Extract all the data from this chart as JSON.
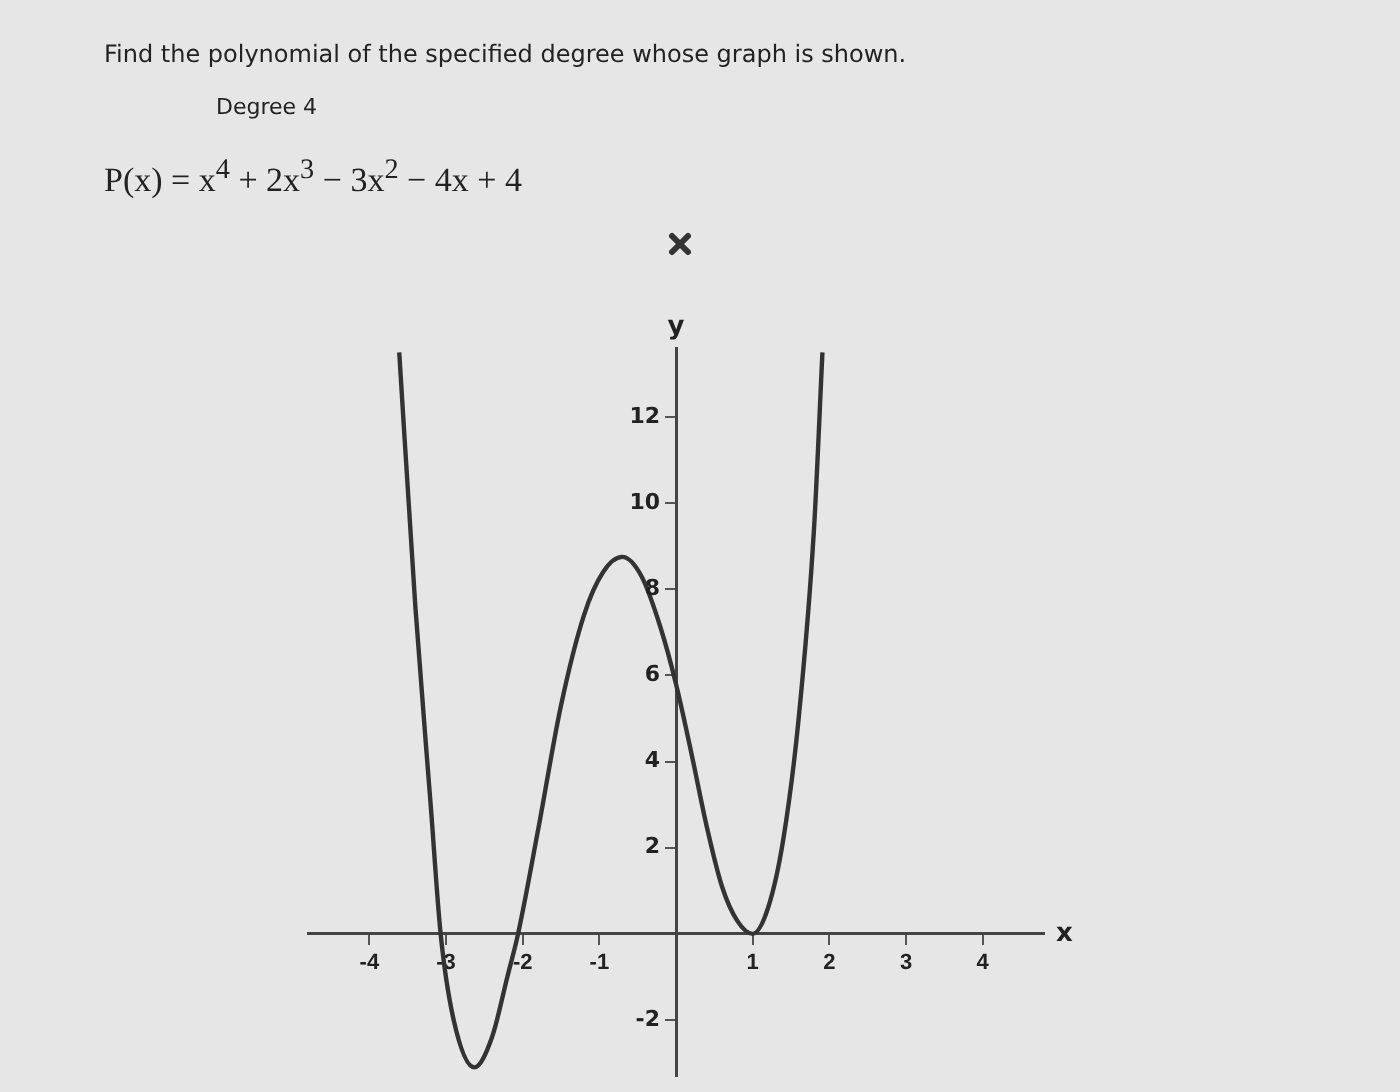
{
  "chart_data": {
    "type": "line",
    "title": "Find the polynomial of the specified degree whose graph is shown.",
    "subtitle": "Degree 4",
    "annotations": [
      "P(x) = x$^{4}$ + 2x$^{3}$ − 3x$^{2}$ − 4x + 4"
    ],
    "xlabel": "x",
    "ylabel": "y",
    "x": [
      -3.61,
      -3.4,
      -3.2,
      -3.07,
      -2.9,
      -2.63,
      -2.4,
      -2.2,
      -2.06,
      -1.8,
      -1.5,
      -1.2,
      -0.95,
      -0.7,
      -0.45,
      -0.2,
      0,
      0.2,
      0.4,
      0.6,
      0.8,
      1,
      1.2,
      1.4,
      1.6,
      1.8,
      1.91
    ],
    "series": [
      {
        "color": "#333333",
        "values": [
          13.5,
          7.6,
          3.0,
          0,
          -2.0,
          -3.1,
          -2.4,
          -1.0,
          0,
          2.4,
          5.3,
          7.4,
          8.4,
          8.75,
          8.3,
          7.1,
          5.8,
          4.2,
          2.5,
          1.1,
          0.3,
          0,
          0.6,
          2.2,
          5.0,
          9.4,
          13.5
        ]
      }
    ],
    "xlim": [
      -4.8,
      4.8
    ],
    "ylim": [
      -3.3,
      13.6
    ],
    "xticks": [
      -4,
      -3,
      -2,
      -1,
      1,
      2,
      3,
      4
    ],
    "yticks": [
      -2,
      2,
      4,
      6,
      8,
      10,
      12
    ],
    "grid": false,
    "legend": false,
    "marker": "none",
    "line_style": "solid"
  }
}
